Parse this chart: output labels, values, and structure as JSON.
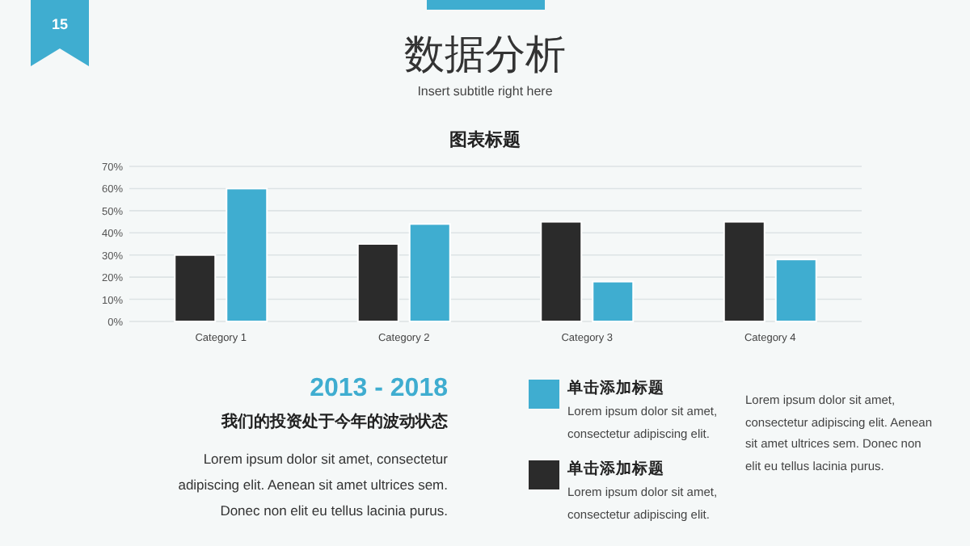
{
  "chart_data": {
    "type": "bar",
    "title": "数据分析",
    "subtitle": "Insert subtitle right here",
    "categories": [
      "Category 1",
      "Category 2",
      "Category 3",
      "Category 4"
    ],
    "series": [
      {
        "name": "单击添加标题",
        "color": "#2b2b2b",
        "values": [
          30,
          35,
          45,
          45
        ]
      },
      {
        "name": "单击添加标题",
        "color": "#3fadd0",
        "values": [
          60,
          44,
          18,
          28
        ]
      }
    ],
    "ylim": [
      0,
      70
    ],
    "yticks": [
      {
        "value": 0,
        "label": "0%"
      },
      {
        "value": 10,
        "label": "10%"
      },
      {
        "value": 20,
        "label": "20%"
      },
      {
        "value": 30,
        "label": "30%"
      },
      {
        "value": 40,
        "label": "40%"
      },
      {
        "value": 50,
        "label": "50%"
      },
      {
        "value": 60,
        "label": "60%"
      },
      {
        "value": 70,
        "label": "70%"
      }
    ],
    "grid": "y",
    "legend": "bottom",
    "annotations": [
      "15",
      "图表标题",
      "2013 - 2018",
      "我们的投资处于今年的波动状态",
      "Lorem ipsum dolor sit amet, consectetur adipiscing elit. Aenean sit amet ultrices sem. Donec non elit eu tellus lacinia purus.",
      "Lorem ipsum dolor sit amet, consectetur adipiscing elit.",
      "Lorem ipsum dolor sit amet, consectetur adipiscing elit.",
      "Lorem ipsum dolor sit amet, consectetur adipiscing elit. Aenean sit amet ultrices sem. Donec non elit eu tellus lacinia purus."
    ]
  }
}
